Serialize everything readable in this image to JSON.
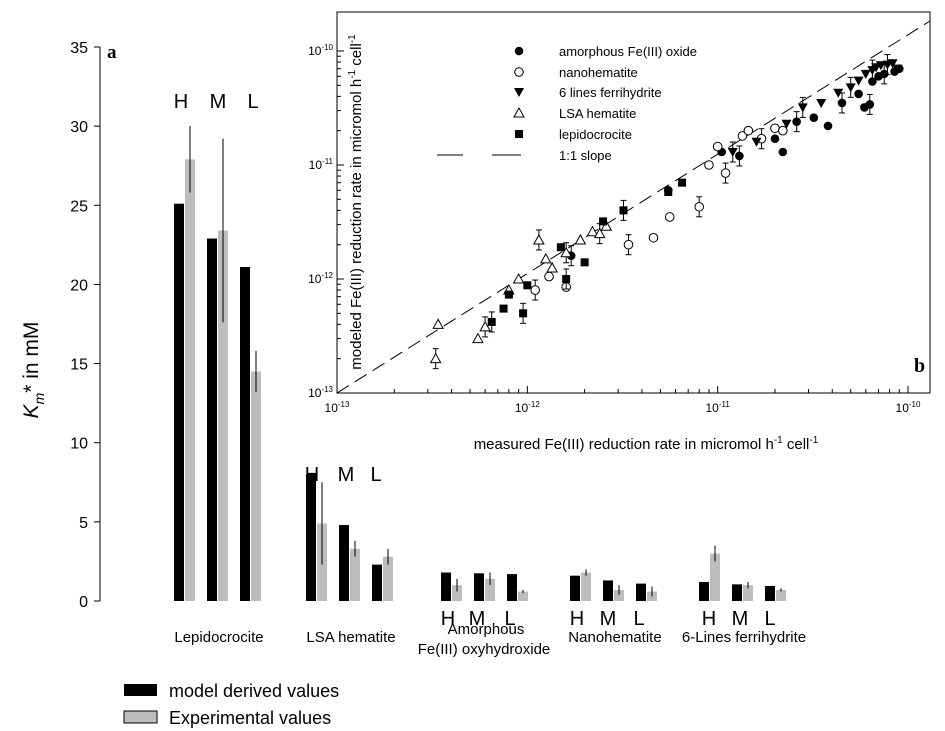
{
  "chart_data": [
    {
      "id": "panel-a",
      "type": "bar",
      "panel_label": "a",
      "ylabel_symbol": "K",
      "ylabel_sub": "m",
      "ylabel_rest": "* in mM",
      "ylim": [
        0,
        35
      ],
      "yticks": [
        "0",
        "5",
        "10",
        "15",
        "20",
        "25",
        "30",
        "35"
      ],
      "level_labels": [
        "H",
        "M",
        "L"
      ],
      "legend": {
        "model": "model derived values",
        "experimental": "Experimental values"
      },
      "colors": {
        "model": "#000000",
        "experimental": "#bdbdbd"
      },
      "groups": [
        {
          "name": "Lepidocrocite",
          "name2": "",
          "model": [
            25.1,
            22.9,
            21.1
          ],
          "experimental": [
            27.9,
            23.4,
            14.5
          ],
          "experimental_error": [
            2.1,
            5.8,
            1.3
          ]
        },
        {
          "name": "LSA hematite",
          "name2": "",
          "model": [
            8.0,
            4.8,
            2.3
          ],
          "experimental": [
            4.9,
            3.3,
            2.8
          ],
          "experimental_error": [
            2.6,
            0.5,
            0.5
          ]
        },
        {
          "name": "Amorphous",
          "name2": "Fe(III) oxyhydroxide",
          "model": [
            1.8,
            1.75,
            1.7
          ],
          "experimental": [
            1.0,
            1.4,
            0.6
          ],
          "experimental_error": [
            0.4,
            0.4,
            0.1
          ]
        },
        {
          "name": "Nanohematite",
          "name2": "",
          "model": [
            1.6,
            1.3,
            1.1
          ],
          "experimental": [
            1.8,
            0.7,
            0.6
          ],
          "experimental_error": [
            0.2,
            0.3,
            0.3
          ]
        },
        {
          "name": "6-Lines ferrihydrite",
          "name2": "",
          "model": [
            1.2,
            1.05,
            0.95
          ],
          "experimental": [
            3.0,
            1.0,
            0.7
          ],
          "experimental_error": [
            0.5,
            0.2,
            0.1
          ]
        }
      ]
    },
    {
      "id": "panel-b",
      "type": "scatter",
      "panel_label": "b",
      "scale": "log-log",
      "xlim": [
        1e-13,
        1e-10
      ],
      "ylim": [
        1e-13,
        1e-10
      ],
      "xticks": [
        -13,
        -12,
        -11,
        -10
      ],
      "yticks": [
        -13,
        -12,
        -11,
        -10
      ],
      "xlabel_main": "measured Fe(III) reduction rate in micromol h",
      "ylabel_main": "modeled Fe(III) reduction rate in micromol h",
      "unit_exp": "-1",
      "unit_cell": " cell",
      "series": [
        {
          "name": "amorphous Fe(III) oxide",
          "marker": "filled-circle",
          "points": [
            [
              1.7e-12,
              1.6e-12
            ],
            [
              5.5e-12,
              6e-12
            ],
            [
              1.05e-11,
              1.3e-11
            ],
            [
              1.3e-11,
              1.2e-11
            ],
            [
              2e-11,
              1.7e-11
            ],
            [
              2.2e-11,
              1.3e-11
            ],
            [
              2.6e-11,
              2.4e-11
            ],
            [
              3.2e-11,
              2.6e-11
            ],
            [
              3.8e-11,
              2.2e-11
            ],
            [
              4.5e-11,
              3.5e-11
            ],
            [
              5.5e-11,
              4.2e-11
            ],
            [
              5.9e-11,
              3.2e-11
            ],
            [
              6.3e-11,
              3.4e-11
            ],
            [
              6.5e-11,
              5.4e-11
            ],
            [
              7e-11,
              6e-11
            ],
            [
              7.5e-11,
              6.3e-11
            ],
            [
              8.5e-11,
              6.6e-11
            ],
            [
              9e-11,
              7e-11
            ]
          ]
        },
        {
          "name": "nanohematite",
          "marker": "open-circle",
          "points": [
            [
              1.1e-12,
              8e-13
            ],
            [
              1.3e-12,
              1.05e-12
            ],
            [
              1.6e-12,
              8.5e-13
            ],
            [
              3.4e-12,
              2e-12
            ],
            [
              4.6e-12,
              2.3e-12
            ],
            [
              5.6e-12,
              3.5e-12
            ],
            [
              8e-12,
              4.3e-12
            ],
            [
              9e-12,
              1e-11
            ],
            [
              1e-11,
              1.45e-11
            ],
            [
              1.1e-11,
              8.5e-12
            ],
            [
              1.35e-11,
              1.8e-11
            ],
            [
              1.45e-11,
              2e-11
            ],
            [
              1.7e-11,
              1.7e-11
            ],
            [
              2e-11,
              2.1e-11
            ],
            [
              2.2e-11,
              2e-11
            ]
          ]
        },
        {
          "name": "6 lines ferrihydrite",
          "marker": "filled-triangle-down",
          "points": [
            [
              1.2e-11,
              1.3e-11
            ],
            [
              1.6e-11,
              1.6e-11
            ],
            [
              2.3e-11,
              2.3e-11
            ],
            [
              2.8e-11,
              3.2e-11
            ],
            [
              3.5e-11,
              3.5e-11
            ],
            [
              4.3e-11,
              4.3e-11
            ],
            [
              5e-11,
              4.8e-11
            ],
            [
              5.5e-11,
              5.5e-11
            ],
            [
              6e-11,
              6.3e-11
            ],
            [
              6.5e-11,
              6.8e-11
            ],
            [
              6.8e-11,
              7.2e-11
            ],
            [
              7.2e-11,
              7.5e-11
            ],
            [
              7.8e-11,
              7.6e-11
            ],
            [
              8.3e-11,
              7.8e-11
            ],
            [
              8.8e-11,
              7e-11
            ]
          ]
        },
        {
          "name": "LSA hematite",
          "marker": "open-triangle-up",
          "points": [
            [
              3.3e-13,
              2e-13
            ],
            [
              3.4e-13,
              4e-13
            ],
            [
              5.5e-13,
              3e-13
            ],
            [
              6e-13,
              3.8e-13
            ],
            [
              8e-13,
              8e-13
            ],
            [
              9e-13,
              1e-12
            ],
            [
              1.15e-12,
              2.2e-12
            ],
            [
              1.25e-12,
              1.5e-12
            ],
            [
              1.35e-12,
              1.25e-12
            ],
            [
              1.6e-12,
              1.7e-12
            ],
            [
              1.9e-12,
              2.2e-12
            ],
            [
              2.2e-12,
              2.6e-12
            ],
            [
              2.4e-12,
              2.5e-12
            ],
            [
              2.6e-12,
              2.9e-12
            ]
          ]
        },
        {
          "name": "lepidocrocite",
          "marker": "filled-square",
          "points": [
            [
              6.5e-13,
              4.2e-13
            ],
            [
              7.5e-13,
              5.5e-13
            ],
            [
              8e-13,
              7.3e-13
            ],
            [
              9.5e-13,
              5e-13
            ],
            [
              1e-12,
              8.8e-13
            ],
            [
              1.5e-12,
              1.9e-12
            ],
            [
              1.6e-12,
              1e-12
            ],
            [
              2e-12,
              1.4e-12
            ],
            [
              2.5e-12,
              3.2e-12
            ],
            [
              3.2e-12,
              4e-12
            ],
            [
              5.5e-12,
              5.8e-12
            ],
            [
              6.5e-12,
              7e-12
            ]
          ]
        }
      ],
      "reference_line": {
        "name": "1:1 slope",
        "style": "dashed"
      }
    }
  ]
}
